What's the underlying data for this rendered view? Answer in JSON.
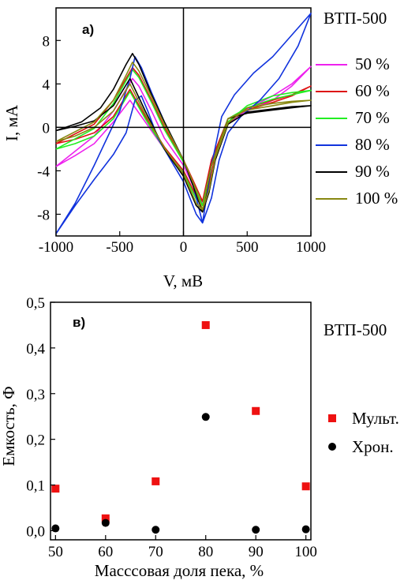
{
  "chart_data": [
    {
      "type": "line",
      "panel_label": "a)",
      "title": "ВТП-500",
      "xlabel": "V, мВ",
      "ylabel": "I, мА",
      "xlim": [
        -1000,
        1000
      ],
      "ylim": [
        -10,
        11
      ],
      "xticks": [
        -1000,
        -500,
        0,
        500,
        1000
      ],
      "xtick_labels": [
        "-1000",
        "-500",
        "0",
        "500",
        "1000"
      ],
      "yticks": [
        -8,
        -4,
        0,
        4,
        8
      ],
      "ytick_labels": [
        "-8",
        "-4",
        "0",
        "4",
        "8"
      ],
      "grid": false,
      "legend_position": "right",
      "series": [
        {
          "name": "50 %",
          "color": "#ee22ee",
          "upper": [
            [
              -1000,
              -3.6
            ],
            [
              -700,
              -0.8
            ],
            [
              -550,
              1.5
            ],
            [
              -450,
              3.5
            ],
            [
              -400,
              4.5
            ],
            [
              -350,
              3.8
            ],
            [
              -250,
              1.5
            ],
            [
              -150,
              -1.0
            ],
            [
              0,
              -3.5
            ],
            [
              80,
              -5.5
            ],
            [
              150,
              -7.0
            ],
            [
              220,
              -3.0
            ],
            [
              350,
              0.5
            ],
            [
              500,
              1.5
            ],
            [
              700,
              2.5
            ],
            [
              850,
              3.8
            ],
            [
              1000,
              5.6
            ]
          ],
          "lower": [
            [
              1000,
              5.6
            ],
            [
              850,
              4.0
            ],
            [
              700,
              2.9
            ],
            [
              500,
              1.7
            ],
            [
              350,
              0.3
            ],
            [
              250,
              -2.5
            ],
            [
              200,
              -5.5
            ],
            [
              150,
              -7.0
            ],
            [
              100,
              -6.5
            ],
            [
              0,
              -4.2
            ],
            [
              -150,
              -2.0
            ],
            [
              -300,
              0.5
            ],
            [
              -420,
              2.5
            ],
            [
              -550,
              0.5
            ],
            [
              -700,
              -1.5
            ],
            [
              -850,
              -2.6
            ],
            [
              -1000,
              -3.6
            ]
          ]
        },
        {
          "name": "60 %",
          "color": "#dd1111",
          "upper": [
            [
              -1000,
              -1.5
            ],
            [
              -700,
              0.3
            ],
            [
              -550,
              2.5
            ],
            [
              -450,
              4.5
            ],
            [
              -400,
              5.5
            ],
            [
              -350,
              4.8
            ],
            [
              -250,
              2.5
            ],
            [
              -150,
              0.0
            ],
            [
              0,
              -3.0
            ],
            [
              80,
              -5.0
            ],
            [
              150,
              -6.8
            ],
            [
              220,
              -3.0
            ],
            [
              350,
              0.8
            ],
            [
              500,
              1.6
            ],
            [
              700,
              2.3
            ],
            [
              850,
              2.9
            ],
            [
              1000,
              3.8
            ]
          ],
          "lower": [
            [
              1000,
              3.8
            ],
            [
              850,
              3.0
            ],
            [
              700,
              2.5
            ],
            [
              500,
              1.8
            ],
            [
              350,
              0.5
            ],
            [
              250,
              -2.5
            ],
            [
              200,
              -5.5
            ],
            [
              150,
              -6.8
            ],
            [
              100,
              -6.3
            ],
            [
              0,
              -4.0
            ],
            [
              -150,
              -1.8
            ],
            [
              -300,
              1.0
            ],
            [
              -420,
              3.5
            ],
            [
              -550,
              1.0
            ],
            [
              -700,
              -0.5
            ],
            [
              -850,
              -1.1
            ],
            [
              -1000,
              -1.5
            ]
          ]
        },
        {
          "name": "70 %",
          "color": "#22ee22",
          "upper": [
            [
              -1000,
              -2.0
            ],
            [
              -700,
              -0.1
            ],
            [
              -550,
              2.2
            ],
            [
              -450,
              4.3
            ],
            [
              -400,
              5.3
            ],
            [
              -350,
              4.6
            ],
            [
              -250,
              2.3
            ],
            [
              -150,
              -0.2
            ],
            [
              0,
              -3.2
            ],
            [
              80,
              -5.2
            ],
            [
              150,
              -7.2
            ],
            [
              220,
              -3.5
            ],
            [
              350,
              0.8
            ],
            [
              500,
              1.8
            ],
            [
              700,
              2.6
            ],
            [
              850,
              3.0
            ],
            [
              1000,
              3.4
            ]
          ],
          "lower": [
            [
              1000,
              3.4
            ],
            [
              850,
              3.2
            ],
            [
              700,
              2.9
            ],
            [
              500,
              2.0
            ],
            [
              350,
              0.5
            ],
            [
              250,
              -2.8
            ],
            [
              200,
              -6.0
            ],
            [
              150,
              -7.2
            ],
            [
              100,
              -6.6
            ],
            [
              0,
              -4.2
            ],
            [
              -150,
              -2.0
            ],
            [
              -300,
              0.8
            ],
            [
              -420,
              3.3
            ],
            [
              -550,
              0.8
            ],
            [
              -700,
              -0.8
            ],
            [
              -850,
              -1.5
            ],
            [
              -1000,
              -2.0
            ]
          ]
        },
        {
          "name": "80 %",
          "color": "#1133dd",
          "upper": [
            [
              -1000,
              -9.8
            ],
            [
              -850,
              -7.0
            ],
            [
              -700,
              -3.5
            ],
            [
              -600,
              -1.0
            ],
            [
              -500,
              1.5
            ],
            [
              -420,
              4.5
            ],
            [
              -380,
              6.5
            ],
            [
              -330,
              5.5
            ],
            [
              -250,
              3.2
            ],
            [
              -150,
              0.5
            ],
            [
              0,
              -3.0
            ],
            [
              80,
              -5.5
            ],
            [
              150,
              -8.8
            ],
            [
              220,
              -3.5
            ],
            [
              300,
              1.0
            ],
            [
              400,
              3.0
            ],
            [
              550,
              5.0
            ],
            [
              700,
              6.5
            ],
            [
              850,
              8.5
            ],
            [
              1000,
              10.5
            ]
          ],
          "lower": [
            [
              1000,
              10.5
            ],
            [
              900,
              7.5
            ],
            [
              750,
              4.5
            ],
            [
              600,
              2.5
            ],
            [
              450,
              1.0
            ],
            [
              350,
              -0.5
            ],
            [
              280,
              -3.0
            ],
            [
              220,
              -6.5
            ],
            [
              150,
              -8.8
            ],
            [
              100,
              -8.0
            ],
            [
              0,
              -5.0
            ],
            [
              -100,
              -3.0
            ],
            [
              -200,
              -1.0
            ],
            [
              -280,
              1.5
            ],
            [
              -330,
              2.9
            ],
            [
              -380,
              2.5
            ],
            [
              -450,
              -0.5
            ],
            [
              -550,
              -2.5
            ],
            [
              -700,
              -4.8
            ],
            [
              -850,
              -7.2
            ],
            [
              -1000,
              -9.8
            ]
          ]
        },
        {
          "name": "90 %",
          "color": "#000000",
          "upper": [
            [
              -1000,
              -0.3
            ],
            [
              -800,
              0.5
            ],
            [
              -650,
              1.8
            ],
            [
              -550,
              3.5
            ],
            [
              -450,
              5.8
            ],
            [
              -400,
              6.8
            ],
            [
              -350,
              5.8
            ],
            [
              -250,
              3.0
            ],
            [
              -150,
              0.5
            ],
            [
              0,
              -3.0
            ],
            [
              80,
              -5.5
            ],
            [
              150,
              -7.8
            ],
            [
              220,
              -3.5
            ],
            [
              350,
              0.8
            ],
            [
              500,
              1.3
            ],
            [
              700,
              1.6
            ],
            [
              850,
              1.8
            ],
            [
              1000,
              2.0
            ]
          ],
          "lower": [
            [
              1000,
              2.0
            ],
            [
              850,
              1.9
            ],
            [
              700,
              1.7
            ],
            [
              500,
              1.4
            ],
            [
              350,
              0.3
            ],
            [
              250,
              -3.0
            ],
            [
              200,
              -6.0
            ],
            [
              150,
              -7.8
            ],
            [
              100,
              -7.2
            ],
            [
              0,
              -4.5
            ],
            [
              -150,
              -2.0
            ],
            [
              -300,
              1.5
            ],
            [
              -420,
              4.5
            ],
            [
              -550,
              2.0
            ],
            [
              -700,
              0.6
            ],
            [
              -850,
              0.1
            ],
            [
              -1000,
              -0.3
            ]
          ]
        },
        {
          "name": "100 %",
          "color": "#888811",
          "upper": [
            [
              -1000,
              -1.3
            ],
            [
              -700,
              0.5
            ],
            [
              -550,
              2.5
            ],
            [
              -450,
              4.8
            ],
            [
              -400,
              6.0
            ],
            [
              -350,
              5.2
            ],
            [
              -250,
              2.8
            ],
            [
              -150,
              0.3
            ],
            [
              0,
              -3.0
            ],
            [
              80,
              -5.2
            ],
            [
              150,
              -7.6
            ],
            [
              220,
              -3.5
            ],
            [
              350,
              0.8
            ],
            [
              500,
              1.6
            ],
            [
              700,
              2.0
            ],
            [
              850,
              2.3
            ],
            [
              1000,
              2.5
            ]
          ],
          "lower": [
            [
              1000,
              2.5
            ],
            [
              850,
              2.4
            ],
            [
              700,
              2.2
            ],
            [
              500,
              1.8
            ],
            [
              350,
              0.4
            ],
            [
              250,
              -2.8
            ],
            [
              200,
              -5.8
            ],
            [
              150,
              -7.6
            ],
            [
              100,
              -7.0
            ],
            [
              0,
              -4.3
            ],
            [
              -150,
              -1.9
            ],
            [
              -300,
              1.2
            ],
            [
              -420,
              4.0
            ],
            [
              -550,
              1.5
            ],
            [
              -700,
              0.0
            ],
            [
              -850,
              -0.8
            ],
            [
              -1000,
              -1.3
            ]
          ]
        }
      ]
    },
    {
      "type": "scatter",
      "panel_label": "в)",
      "title": "ВТП-500",
      "xlabel": "Масcсовая доля пека, %",
      "ylabel": "Емкость, Ф",
      "xlim": [
        49,
        101
      ],
      "ylim": [
        -0.02,
        0.5
      ],
      "xticks": [
        50,
        60,
        70,
        80,
        90,
        100
      ],
      "xtick_labels": [
        "50",
        "60",
        "70",
        "80",
        "90",
        "100"
      ],
      "yticks": [
        0.0,
        0.1,
        0.2,
        0.3,
        0.4,
        0.5
      ],
      "ytick_labels": [
        "0,0",
        "0,1",
        "0,2",
        "0,3",
        "0,4",
        "0,5"
      ],
      "grid": false,
      "legend_position": "right",
      "series": [
        {
          "name": "Мульт.",
          "color": "#ee1111",
          "marker": "square",
          "x": [
            50,
            60,
            70,
            80,
            90,
            100
          ],
          "y": [
            0.092,
            0.027,
            0.108,
            0.45,
            0.262,
            0.097
          ]
        },
        {
          "name": "Хрон.",
          "color": "#000000",
          "marker": "circle",
          "x": [
            50,
            60,
            70,
            80,
            90,
            100
          ],
          "y": [
            0.005,
            0.017,
            0.002,
            0.249,
            0.002,
            0.003
          ]
        }
      ]
    }
  ]
}
